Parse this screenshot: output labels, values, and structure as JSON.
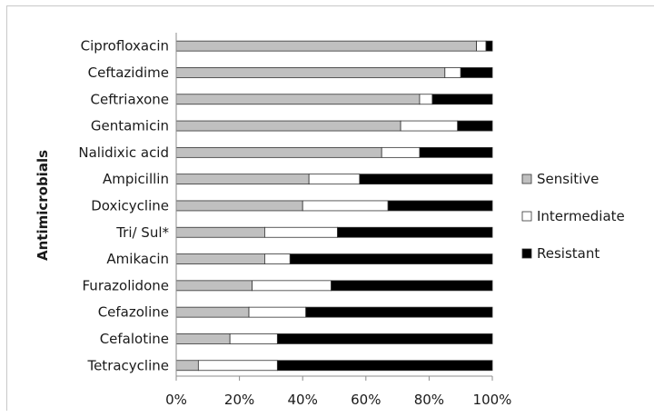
{
  "chart_data": {
    "type": "bar",
    "orientation": "horizontal",
    "stacked": true,
    "percent_stacked": true,
    "title": "",
    "xlabel": "",
    "ylabel": "Antimicrobials",
    "xlim": [
      0,
      100
    ],
    "x_ticks": [
      "0%",
      "20%",
      "40%",
      "60%",
      "80%",
      "100%"
    ],
    "categories": [
      "Ciprofloxacin",
      "Ceftazidime",
      "Ceftriaxone",
      "Gentamicin",
      "Nalidixic acid",
      "Ampicillin",
      "Doxicycline",
      "Tri/ Sul*",
      "Amikacin",
      "Furazolidone",
      "Cefazoline",
      "Cefalotine",
      "Tetracycline"
    ],
    "series": [
      {
        "name": "Sensitive",
        "color": "#c0c0c0",
        "values": [
          95,
          85,
          77,
          71,
          65,
          42,
          40,
          28,
          28,
          24,
          23,
          17,
          7
        ]
      },
      {
        "name": "Intermediate",
        "color": "#ffffff",
        "values": [
          3,
          5,
          4,
          18,
          12,
          16,
          27,
          23,
          8,
          25,
          18,
          15,
          25
        ]
      },
      {
        "name": "Resistant",
        "color": "#000000",
        "values": [
          2,
          10,
          19,
          11,
          23,
          42,
          33,
          49,
          64,
          51,
          59,
          68,
          68
        ]
      }
    ],
    "grid": false,
    "legend_position": "right"
  }
}
